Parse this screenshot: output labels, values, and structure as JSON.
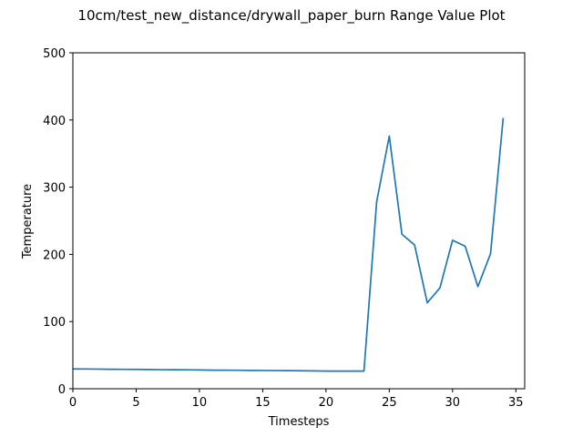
{
  "chart_data": {
    "type": "line",
    "title": "10cm/test_new_distance/drywall_paper_burn Range Value Plot",
    "xlabel": "Timesteps",
    "ylabel": "Temperature",
    "xlim": [
      0,
      35.7
    ],
    "ylim": [
      0,
      500
    ],
    "xticks": [
      0,
      5,
      10,
      15,
      20,
      25,
      30,
      35
    ],
    "yticks": [
      0,
      100,
      200,
      300,
      400,
      500
    ],
    "grid": false,
    "series": [
      {
        "color": "#1f77b4",
        "x": [
          0,
          1,
          2,
          3,
          4,
          5,
          6,
          7,
          8,
          9,
          10,
          11,
          12,
          13,
          14,
          15,
          16,
          17,
          18,
          19,
          20,
          21,
          22,
          23,
          24,
          25,
          26,
          27,
          28,
          29,
          30,
          31,
          32,
          33,
          34
        ],
        "y": [
          29.5,
          29.4,
          29.2,
          29.0,
          28.9,
          28.8,
          28.6,
          28.4,
          28.3,
          28.2,
          28.0,
          27.6,
          27.6,
          27.5,
          27.3,
          27.2,
          27.0,
          26.9,
          26.8,
          26.6,
          26.3,
          26.2,
          26.2,
          26.2,
          278,
          376,
          230,
          214,
          128,
          150,
          221,
          212,
          152,
          201,
          403
        ]
      }
    ]
  }
}
